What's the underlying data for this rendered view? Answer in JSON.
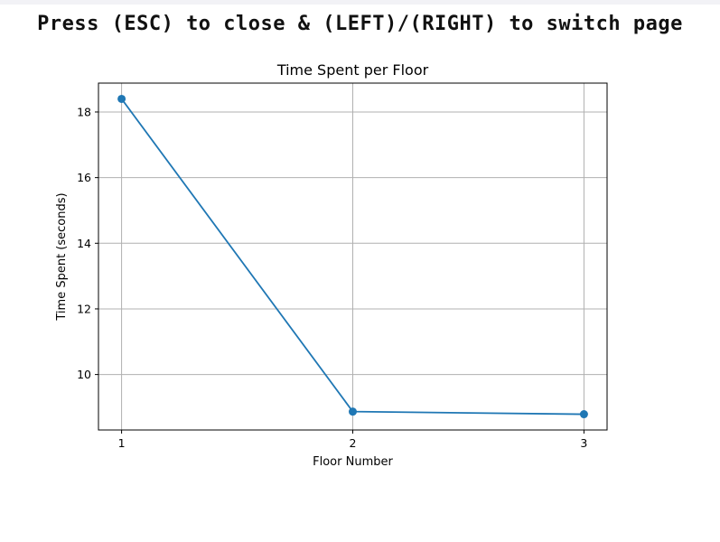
{
  "header": {
    "instructions": "Press (ESC) to close & (LEFT)/(RIGHT) to switch page"
  },
  "chart_data": {
    "type": "line",
    "title": "Time Spent per Floor",
    "xlabel": "Floor Number",
    "ylabel": "Time Spent (seconds)",
    "x": [
      1,
      2,
      3
    ],
    "x_ticks": [
      "1",
      "2",
      "3"
    ],
    "series": [
      {
        "values": [
          18.4,
          8.87,
          8.79
        ],
        "color": "#1f77b4",
        "marker": "circle"
      }
    ],
    "y_ticks": [
      10,
      12,
      14,
      16,
      18
    ],
    "y_tick_labels": [
      "10",
      "12",
      "14",
      "16",
      "18"
    ],
    "xlim": [
      0.9,
      3.1
    ],
    "ylim": [
      8.31,
      18.88
    ],
    "grid": true,
    "grid_color": "#b0b0b0",
    "axis_color": "#000000"
  }
}
